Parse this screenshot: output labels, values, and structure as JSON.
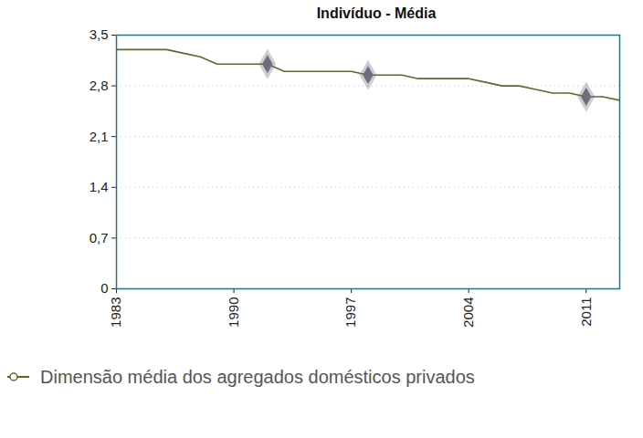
{
  "chart_data": {
    "type": "line",
    "title": "Indivíduo - Média",
    "x": [
      1983,
      1984,
      1985,
      1986,
      1987,
      1988,
      1989,
      1990,
      1991,
      1992,
      1993,
      1994,
      1995,
      1996,
      1997,
      1998,
      1999,
      2000,
      2001,
      2002,
      2003,
      2004,
      2005,
      2006,
      2007,
      2008,
      2009,
      2010,
      2011,
      2012,
      2013
    ],
    "series": [
      {
        "name": "Dimensão média dos agregados domésticos privados",
        "color": "#5b6a2c",
        "values": [
          3.3,
          3.3,
          3.3,
          3.3,
          3.25,
          3.2,
          3.1,
          3.1,
          3.1,
          3.1,
          3.0,
          3.0,
          3.0,
          3.0,
          3.0,
          2.95,
          2.95,
          2.95,
          2.9,
          2.9,
          2.9,
          2.9,
          2.85,
          2.8,
          2.8,
          2.75,
          2.7,
          2.7,
          2.65,
          2.65,
          2.6
        ]
      }
    ],
    "highlights": {
      "x": [
        1992,
        1998,
        2011
      ],
      "values": [
        3.1,
        2.95,
        2.65
      ],
      "color": "#6d6d7d"
    },
    "xlim": [
      1983,
      2013
    ],
    "xticks": [
      1983,
      1990,
      1997,
      2004,
      2011
    ],
    "ylim": [
      0,
      3.5
    ],
    "yticks": [
      0,
      {
        "value": 0.7,
        "label": "0,7"
      },
      {
        "value": 1.4,
        "label": "1,4"
      },
      {
        "value": 2.1,
        "label": "2,1"
      },
      {
        "value": 2.8,
        "label": "2,8"
      },
      {
        "value": 3.5,
        "label": "3,5"
      }
    ],
    "grid": true,
    "legend": "bottom"
  }
}
